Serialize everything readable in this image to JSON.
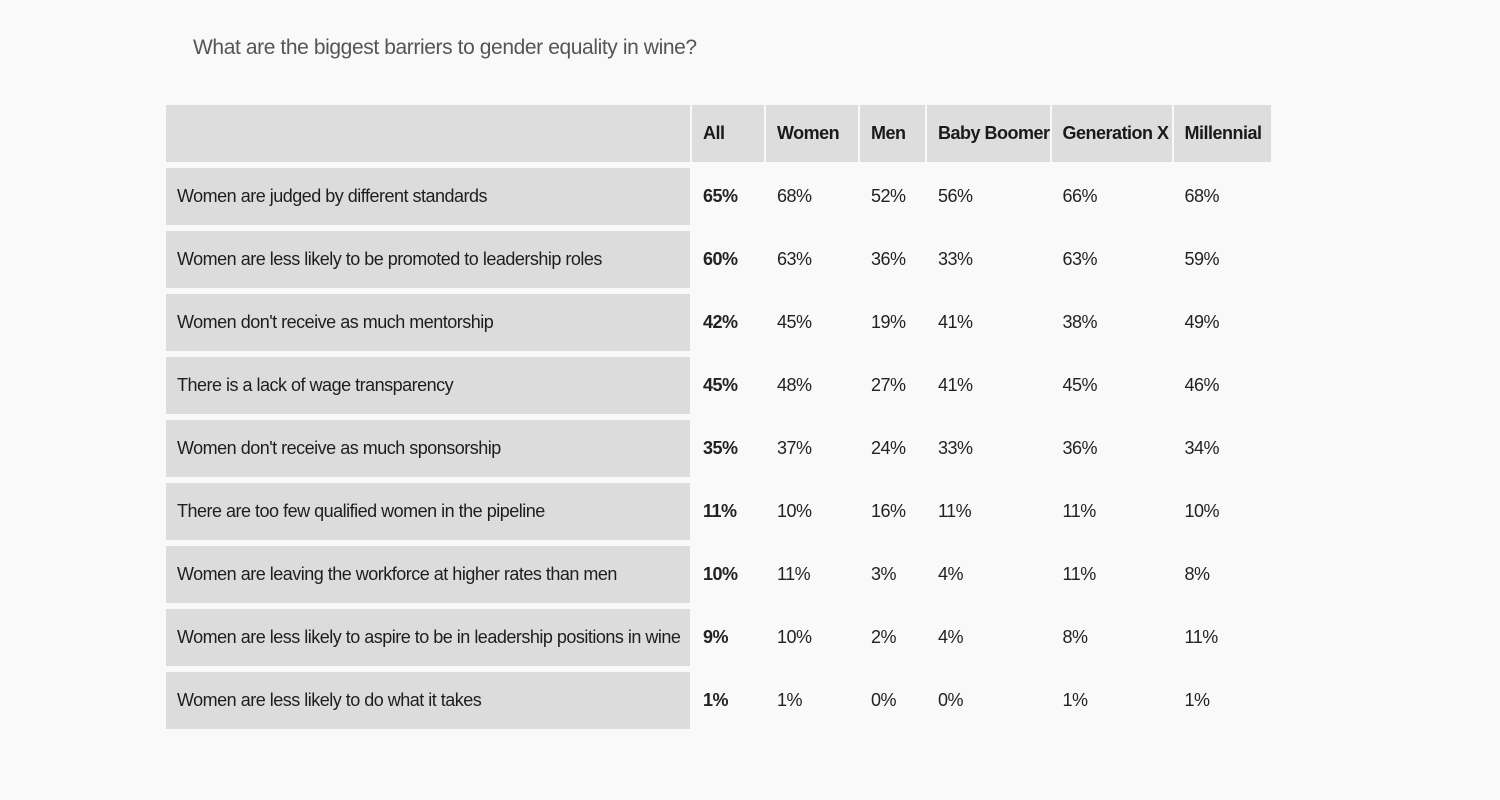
{
  "chart_data": {
    "type": "table",
    "title": "What are the biggest barriers to gender equality in wine?",
    "columns": [
      "",
      "All",
      "Women",
      "Men",
      "Baby Boomer",
      "Generation X",
      "Millennial"
    ],
    "rows": [
      {
        "label": "Women are judged by different standards",
        "values": [
          "65%",
          "68%",
          "52%",
          "56%",
          "66%",
          "68%"
        ]
      },
      {
        "label": "Women are less likely to be promoted to leadership roles",
        "values": [
          "60%",
          "63%",
          "36%",
          "33%",
          "63%",
          "59%"
        ]
      },
      {
        "label": "Women don't receive as much mentorship",
        "values": [
          "42%",
          "45%",
          "19%",
          "41%",
          "38%",
          "49%"
        ]
      },
      {
        "label": "There is a lack of wage transparency",
        "values": [
          "45%",
          "48%",
          "27%",
          "41%",
          "45%",
          "46%"
        ]
      },
      {
        "label": "Women don't receive as much sponsorship",
        "values": [
          "35%",
          "37%",
          "24%",
          "33%",
          "36%",
          "34%"
        ]
      },
      {
        "label": "There are too few qualified women in the pipeline",
        "values": [
          "11%",
          "10%",
          "16%",
          "11%",
          "11%",
          "10%"
        ]
      },
      {
        "label": "Women are leaving the workforce at higher rates than men",
        "values": [
          "10%",
          "11%",
          "3%",
          "4%",
          "11%",
          "8%"
        ]
      },
      {
        "label": "Women are less likely to aspire to be in leadership positions in wine",
        "values": [
          "9%",
          "10%",
          "2%",
          "4%",
          "8%",
          "11%"
        ]
      },
      {
        "label": "Women are less likely to do what it takes",
        "values": [
          "1%",
          "1%",
          "0%",
          "0%",
          "1%",
          "1%"
        ]
      }
    ]
  }
}
